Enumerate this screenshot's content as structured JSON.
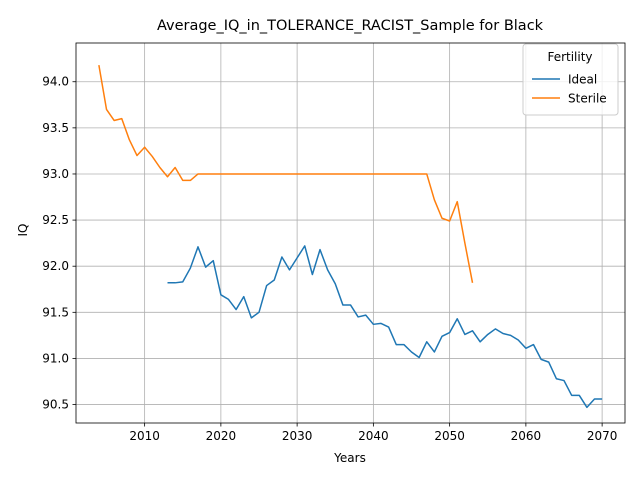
{
  "chart_data": {
    "type": "line",
    "title": "Average_IQ_in_TOLERANCE_RACIST_Sample for Black",
    "xlabel": "Years",
    "ylabel": "IQ",
    "xlim": [
      2001,
      2073
    ],
    "ylim": [
      90.3,
      94.42
    ],
    "xticks": [
      2010,
      2020,
      2030,
      2040,
      2050,
      2060,
      2070
    ],
    "yticks": [
      90.5,
      91.0,
      91.5,
      92.0,
      92.5,
      93.0,
      93.5,
      94.0
    ],
    "ytick_labels": [
      "90.5",
      "91.0",
      "91.5",
      "92.0",
      "92.5",
      "93.0",
      "93.5",
      "94.0"
    ],
    "grid": true,
    "legend": {
      "title": "Fertility",
      "placement": "top-right"
    },
    "series": [
      {
        "name": "Ideal",
        "color": "#1f77b4",
        "points": [
          [
            2013,
            91.82
          ],
          [
            2014,
            91.82
          ],
          [
            2015,
            91.83
          ],
          [
            2016,
            91.98
          ],
          [
            2017,
            92.21
          ],
          [
            2018,
            91.99
          ],
          [
            2019,
            92.06
          ],
          [
            2020,
            91.69
          ],
          [
            2021,
            91.64
          ],
          [
            2022,
            91.53
          ],
          [
            2023,
            91.67
          ],
          [
            2024,
            91.44
          ],
          [
            2025,
            91.5
          ],
          [
            2026,
            91.79
          ],
          [
            2027,
            91.85
          ],
          [
            2028,
            92.1
          ],
          [
            2029,
            91.96
          ],
          [
            2030,
            92.09
          ],
          [
            2031,
            92.22
          ],
          [
            2032,
            91.91
          ],
          [
            2033,
            92.18
          ],
          [
            2034,
            91.96
          ],
          [
            2035,
            91.81
          ],
          [
            2036,
            91.58
          ],
          [
            2037,
            91.58
          ],
          [
            2038,
            91.45
          ],
          [
            2039,
            91.47
          ],
          [
            2040,
            91.37
          ],
          [
            2041,
            91.38
          ],
          [
            2042,
            91.34
          ],
          [
            2043,
            91.15
          ],
          [
            2044,
            91.15
          ],
          [
            2045,
            91.07
          ],
          [
            2046,
            91.01
          ],
          [
            2047,
            91.18
          ],
          [
            2048,
            91.07
          ],
          [
            2049,
            91.24
          ],
          [
            2050,
            91.28
          ],
          [
            2051,
            91.43
          ],
          [
            2052,
            91.26
          ],
          [
            2053,
            91.3
          ],
          [
            2054,
            91.18
          ],
          [
            2055,
            91.26
          ],
          [
            2056,
            91.32
          ],
          [
            2057,
            91.27
          ],
          [
            2058,
            91.25
          ],
          [
            2059,
            91.2
          ],
          [
            2060,
            91.11
          ],
          [
            2061,
            91.15
          ],
          [
            2062,
            90.99
          ],
          [
            2063,
            90.96
          ],
          [
            2064,
            90.78
          ],
          [
            2065,
            90.76
          ],
          [
            2066,
            90.6
          ],
          [
            2067,
            90.6
          ],
          [
            2068,
            90.47
          ],
          [
            2069,
            90.56
          ],
          [
            2070,
            90.56
          ]
        ]
      },
      {
        "name": "Sterile",
        "color": "#ff7f0e",
        "points": [
          [
            2004,
            94.18
          ],
          [
            2005,
            93.7
          ],
          [
            2006,
            93.58
          ],
          [
            2007,
            93.6
          ],
          [
            2008,
            93.37
          ],
          [
            2009,
            93.2
          ],
          [
            2010,
            93.29
          ],
          [
            2011,
            93.19
          ],
          [
            2012,
            93.07
          ],
          [
            2013,
            92.97
          ],
          [
            2014,
            93.07
          ],
          [
            2015,
            92.93
          ],
          [
            2016,
            92.93
          ],
          [
            2017,
            93.0
          ],
          [
            2018,
            93.0
          ],
          [
            2019,
            93.0
          ],
          [
            2020,
            93.0
          ],
          [
            2021,
            93.0
          ],
          [
            2022,
            93.0
          ],
          [
            2023,
            93.0
          ],
          [
            2024,
            93.0
          ],
          [
            2025,
            93.0
          ],
          [
            2026,
            93.0
          ],
          [
            2027,
            93.0
          ],
          [
            2028,
            93.0
          ],
          [
            2029,
            93.0
          ],
          [
            2030,
            93.0
          ],
          [
            2031,
            93.0
          ],
          [
            2032,
            93.0
          ],
          [
            2033,
            93.0
          ],
          [
            2034,
            93.0
          ],
          [
            2035,
            93.0
          ],
          [
            2036,
            93.0
          ],
          [
            2037,
            93.0
          ],
          [
            2038,
            93.0
          ],
          [
            2039,
            93.0
          ],
          [
            2040,
            93.0
          ],
          [
            2041,
            93.0
          ],
          [
            2042,
            93.0
          ],
          [
            2043,
            93.0
          ],
          [
            2044,
            93.0
          ],
          [
            2045,
            93.0
          ],
          [
            2046,
            93.0
          ],
          [
            2047,
            93.0
          ],
          [
            2048,
            92.72
          ],
          [
            2049,
            92.52
          ],
          [
            2050,
            92.49
          ],
          [
            2051,
            92.7
          ],
          [
            2052,
            92.25
          ],
          [
            2053,
            91.82
          ]
        ]
      }
    ]
  }
}
